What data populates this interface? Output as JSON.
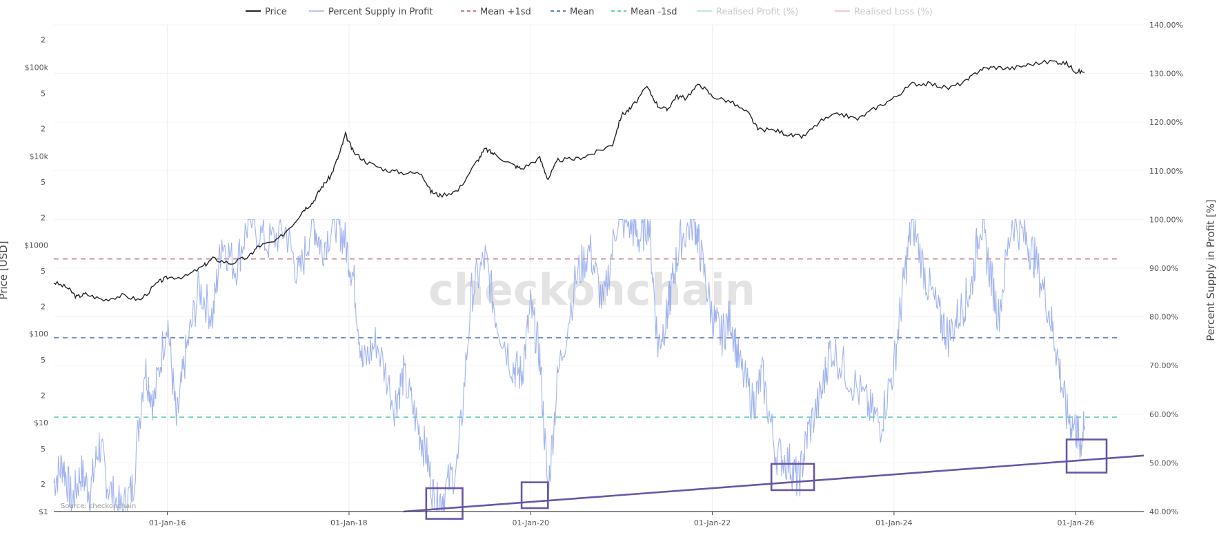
{
  "chart_data": {
    "type": "line",
    "watermark": "checkonchain",
    "source": "Source: checkonchain",
    "legend": [
      {
        "label": "Price",
        "color": "#222222",
        "dash": "solid",
        "faint": false
      },
      {
        "label": "Percent Supply in Profit",
        "color": "#b9c6ee",
        "dash": "solid",
        "faint": false
      },
      {
        "label": "Mean +1sd",
        "color": "#c97a80",
        "dash": "dash",
        "faint": false
      },
      {
        "label": "Mean",
        "color": "#5b7fc7",
        "dash": "dash",
        "faint": false
      },
      {
        "label": "Mean -1sd",
        "color": "#5fcfb0",
        "dash": "dash",
        "faint": false
      },
      {
        "label": "Realised Profit (%)",
        "color": "#b5ead6",
        "dash": "solid",
        "faint": true
      },
      {
        "label": "Realised Loss (%)",
        "color": "#f0c6d2",
        "dash": "solid",
        "faint": true
      }
    ],
    "yaxis_left": {
      "title": "Price [USD]",
      "scale": "log",
      "range": [
        1,
        300000
      ],
      "major_ticks": [
        {
          "value": 1,
          "label": "$1"
        },
        {
          "value": 10,
          "label": "$10"
        },
        {
          "value": 100,
          "label": "$100"
        },
        {
          "value": 1000,
          "label": "$1000"
        },
        {
          "value": 10000,
          "label": "$10k"
        },
        {
          "value": 100000,
          "label": "$100k"
        }
      ],
      "minor_ticks": [
        {
          "value": 2,
          "label": "2"
        },
        {
          "value": 5,
          "label": "5"
        },
        {
          "value": 20,
          "label": "2"
        },
        {
          "value": 50,
          "label": "5"
        },
        {
          "value": 200,
          "label": "2"
        },
        {
          "value": 500,
          "label": "5"
        },
        {
          "value": 2000,
          "label": "2"
        },
        {
          "value": 5000,
          "label": "5"
        },
        {
          "value": 20000,
          "label": "2"
        },
        {
          "value": 50000,
          "label": "5"
        },
        {
          "value": 200000,
          "label": "2"
        }
      ]
    },
    "yaxis_right": {
      "title": "Percent Supply in Profit [%]",
      "range": [
        40,
        140
      ],
      "ticks": [
        {
          "value": 40,
          "label": "40.00%"
        },
        {
          "value": 50,
          "label": "50.00%"
        },
        {
          "value": 60,
          "label": "60.00%"
        },
        {
          "value": 70,
          "label": "70.00%"
        },
        {
          "value": 80,
          "label": "80.00%"
        },
        {
          "value": 90,
          "label": "90.00%"
        },
        {
          "value": 100,
          "label": "100.00%"
        },
        {
          "value": 110,
          "label": "110.00%"
        },
        {
          "value": 120,
          "label": "120.00%"
        },
        {
          "value": 130,
          "label": "130.00%"
        },
        {
          "value": 140,
          "label": "140.00%"
        }
      ]
    },
    "xaxis": {
      "range": [
        2014.75,
        2026.75
      ],
      "ticks": [
        {
          "value": 2016.0,
          "label": "01-Jan-16"
        },
        {
          "value": 2018.0,
          "label": "01-Jan-18"
        },
        {
          "value": 2020.0,
          "label": "01-Jan-20"
        },
        {
          "value": 2022.0,
          "label": "01-Jan-22"
        },
        {
          "value": 2024.0,
          "label": "01-Jan-24"
        },
        {
          "value": 2026.0,
          "label": "01-Jan-26"
        }
      ]
    },
    "reference_lines": [
      {
        "name": "Mean +1sd",
        "value": 91.9,
        "color": "#c97a80"
      },
      {
        "name": "Mean",
        "value": 75.7,
        "color": "#5b7fc7"
      },
      {
        "name": "Mean -1sd",
        "value": 59.4,
        "color": "#5fcfb0"
      }
    ],
    "series": [
      {
        "name": "Price",
        "axis": "left",
        "color": "#222222",
        "x": [
          2014.75,
          2014.9,
          2015.0,
          2015.1,
          2015.3,
          2015.5,
          2015.7,
          2015.9,
          2016.0,
          2016.2,
          2016.4,
          2016.5,
          2016.7,
          2016.9,
          2017.0,
          2017.2,
          2017.4,
          2017.5,
          2017.6,
          2017.7,
          2017.8,
          2017.9,
          2017.96,
          2018.05,
          2018.2,
          2018.4,
          2018.6,
          2018.8,
          2018.9,
          2019.0,
          2019.2,
          2019.4,
          2019.5,
          2019.6,
          2019.8,
          2019.9,
          2020.1,
          2020.19,
          2020.3,
          2020.5,
          2020.7,
          2020.9,
          2021.0,
          2021.1,
          2021.28,
          2021.4,
          2021.5,
          2021.6,
          2021.7,
          2021.86,
          2022.0,
          2022.2,
          2022.4,
          2022.5,
          2022.7,
          2022.87,
          2023.0,
          2023.2,
          2023.4,
          2023.6,
          2023.8,
          2024.0,
          2024.2,
          2024.4,
          2024.6,
          2024.8,
          2024.95,
          2025.1,
          2025.3,
          2025.5,
          2025.75,
          2025.9,
          2026.0,
          2026.1
        ],
        "values": [
          380,
          330,
          260,
          280,
          240,
          270,
          240,
          380,
          430,
          440,
          580,
          700,
          620,
          740,
          970,
          1100,
          1800,
          2500,
          3000,
          4500,
          6000,
          11000,
          17500,
          11000,
          8500,
          7000,
          6500,
          6400,
          4000,
          3600,
          4100,
          8500,
          12000,
          10500,
          8000,
          7200,
          9500,
          5500,
          9000,
          9300,
          10800,
          13500,
          29000,
          34000,
          60000,
          37000,
          33000,
          47000,
          45000,
          65000,
          47000,
          41000,
          30000,
          20000,
          19500,
          17000,
          16500,
          25000,
          30000,
          26000,
          35000,
          45000,
          65000,
          65000,
          58000,
          70000,
          95000,
          100000,
          97000,
          108000,
          117000,
          110000,
          90000,
          88000
        ]
      },
      {
        "name": "Percent Supply in Profit",
        "axis": "right",
        "color": "#8fa6ee",
        "x": [
          2014.75,
          2014.85,
          2014.95,
          2015.05,
          2015.15,
          2015.25,
          2015.35,
          2015.5,
          2015.62,
          2015.75,
          2015.85,
          2016.0,
          2016.1,
          2016.2,
          2016.35,
          2016.5,
          2016.6,
          2016.75,
          2016.9,
          2017.1,
          2017.3,
          2017.45,
          2017.6,
          2017.7,
          2017.85,
          2017.95,
          2018.05,
          2018.15,
          2018.3,
          2018.5,
          2018.6,
          2018.75,
          2018.85,
          2018.95,
          2019.05,
          2019.2,
          2019.35,
          2019.5,
          2019.62,
          2019.8,
          2019.9,
          2020.0,
          2020.1,
          2020.19,
          2020.3,
          2020.5,
          2020.65,
          2020.8,
          2020.95,
          2021.1,
          2021.2,
          2021.3,
          2021.4,
          2021.5,
          2021.55,
          2021.65,
          2021.8,
          2021.87,
          2022.0,
          2022.1,
          2022.2,
          2022.3,
          2022.45,
          2022.55,
          2022.7,
          2022.85,
          2022.95,
          2023.05,
          2023.2,
          2023.3,
          2023.5,
          2023.7,
          2023.85,
          2024.0,
          2024.1,
          2024.2,
          2024.35,
          2024.5,
          2024.6,
          2024.75,
          2024.85,
          2024.95,
          2025.05,
          2025.15,
          2025.3,
          2025.45,
          2025.55,
          2025.7,
          2025.8,
          2025.9,
          2026.0,
          2026.05,
          2026.1
        ],
        "values": [
          46,
          50,
          42,
          48,
          44,
          54,
          45,
          40,
          45,
          70,
          62,
          80,
          58,
          72,
          86,
          80,
          96,
          90,
          100,
          95,
          98,
          88,
          100,
          94,
          100,
          96,
          88,
          70,
          75,
          62,
          68,
          58,
          52,
          41,
          44,
          50,
          85,
          92,
          80,
          70,
          68,
          82,
          72,
          44,
          68,
          88,
          94,
          82,
          100,
          99,
          96,
          100,
          74,
          80,
          86,
          96,
          100,
          93,
          80,
          76,
          80,
          70,
          62,
          68,
          52,
          50,
          46,
          56,
          64,
          74,
          68,
          62,
          58,
          70,
          86,
          100,
          88,
          80,
          76,
          82,
          86,
          100,
          90,
          80,
          100,
          96,
          92,
          82,
          72,
          60,
          57,
          54,
          57
        ]
      }
    ],
    "trendline": {
      "color": "#6a55a8",
      "x": [
        2018.6,
        2026.75
      ],
      "values": [
        40,
        51.5
      ]
    },
    "highlight_boxes": [
      {
        "x": [
          2018.85,
          2019.25
        ],
        "values": [
          38.5,
          44.8
        ]
      },
      {
        "x": [
          2019.9,
          2020.19
        ],
        "values": [
          40.7,
          46.0
        ]
      },
      {
        "x": [
          2022.65,
          2023.12
        ],
        "values": [
          44.4,
          49.8
        ]
      },
      {
        "x": [
          2025.9,
          2026.34
        ],
        "values": [
          48.0,
          54.8
        ]
      }
    ]
  }
}
